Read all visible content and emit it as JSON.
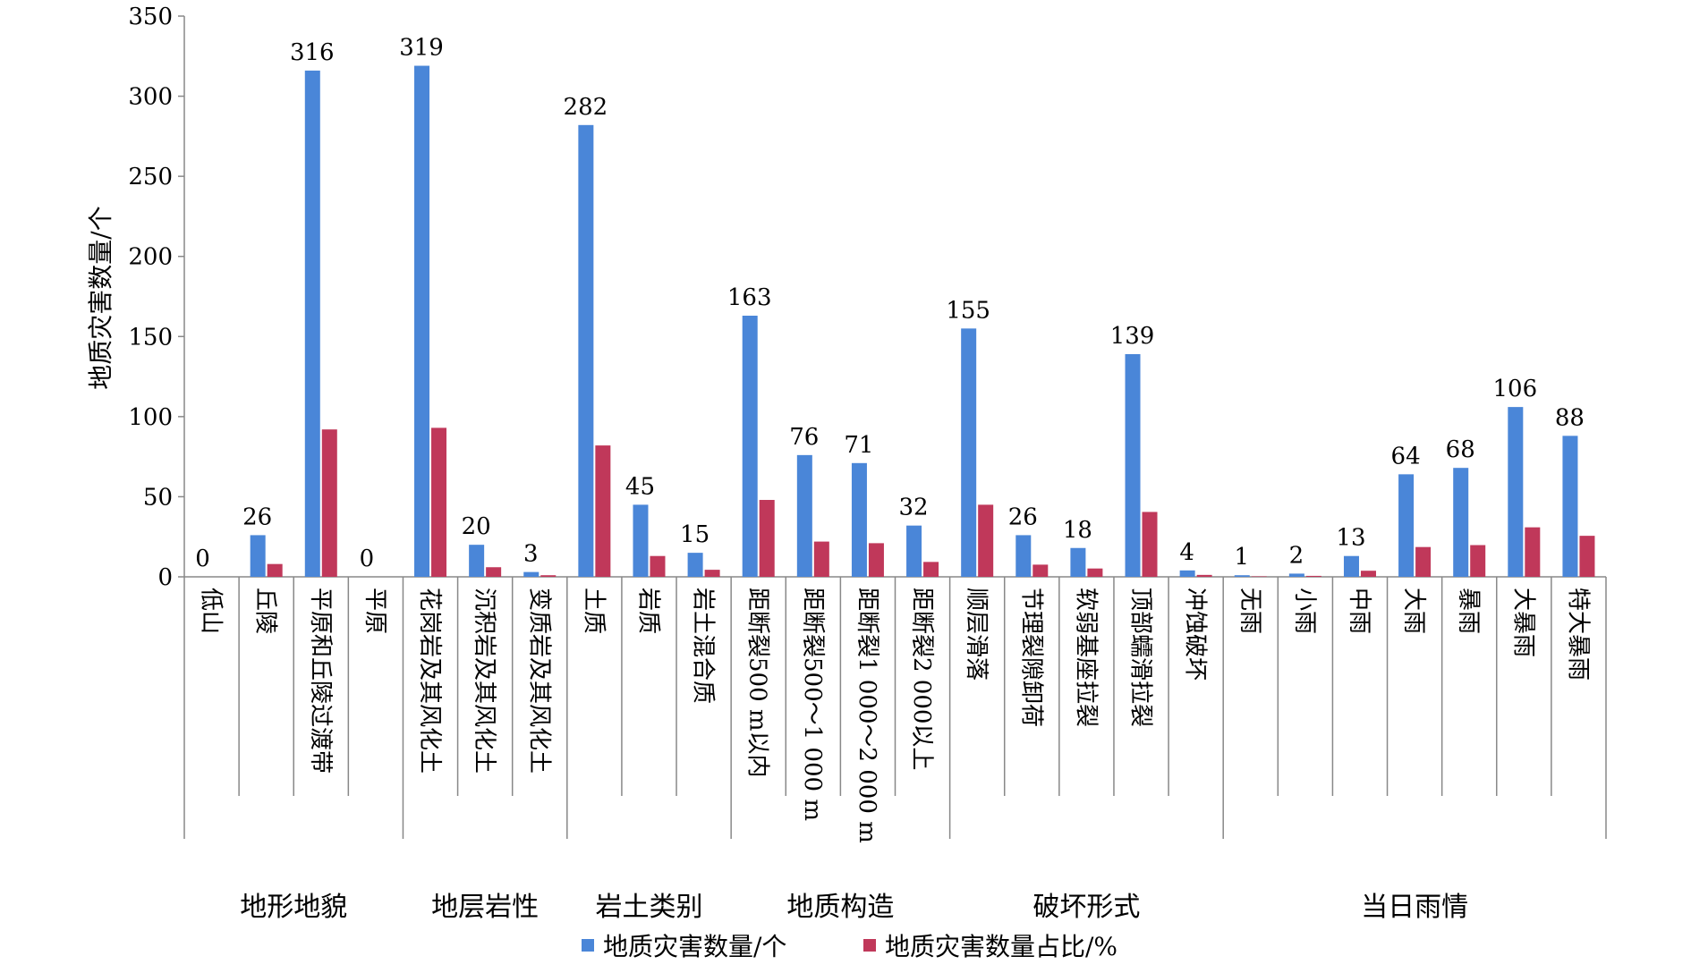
{
  "chart_data": {
    "type": "bar",
    "ylabel": "地质灾害数量/个",
    "ylim": [
      0,
      350
    ],
    "yticks": [
      0,
      50,
      100,
      150,
      200,
      250,
      300,
      350
    ],
    "grid": false,
    "legend_position": "bottom",
    "categories": [
      "低山",
      "丘陵",
      "平原和丘陵过渡带",
      "平原",
      "花岗岩及其风化土",
      "沉积岩及其风化土",
      "变质岩及其风化土",
      "土质",
      "岩质",
      "岩土混合质",
      "距断裂500 m以内",
      "距断裂500～1 000 m",
      "距断裂1 000～2 000 m",
      "距断裂2 000以上",
      "顺层滑落",
      "节理裂隙卸荷",
      "软弱基座拉裂",
      "顶部蠕滑拉裂",
      "冲蚀破坏",
      "无雨",
      "小雨",
      "中雨",
      "大雨",
      "暴雨",
      "大暴雨",
      "特大暴雨"
    ],
    "groups": [
      {
        "label": "地形地貌",
        "start": 0,
        "end": 3
      },
      {
        "label": "地层岩性",
        "start": 4,
        "end": 6
      },
      {
        "label": "岩土类别",
        "start": 7,
        "end": 9
      },
      {
        "label": "地质构造",
        "start": 10,
        "end": 13
      },
      {
        "label": "破坏形式",
        "start": 14,
        "end": 18
      },
      {
        "label": "当日雨情",
        "start": 19,
        "end": 25
      }
    ],
    "series": [
      {
        "name": "地质灾害数量/个",
        "color": "#4A86D8",
        "values": [
          0,
          26,
          316,
          0,
          319,
          20,
          3,
          282,
          45,
          15,
          163,
          76,
          71,
          32,
          155,
          26,
          18,
          139,
          4,
          1,
          2,
          13,
          64,
          68,
          106,
          88
        ]
      },
      {
        "name": "地质灾害数量占比/%",
        "color": "#C0385A",
        "values": [
          0,
          8.0,
          92.0,
          0,
          93.0,
          6.0,
          1.0,
          82.0,
          13.0,
          4.4,
          48.0,
          22.0,
          21.0,
          9.3,
          45.0,
          7.6,
          5.2,
          40.5,
          1.2,
          0.3,
          0.6,
          3.8,
          18.6,
          19.8,
          30.9,
          25.6
        ]
      }
    ]
  }
}
